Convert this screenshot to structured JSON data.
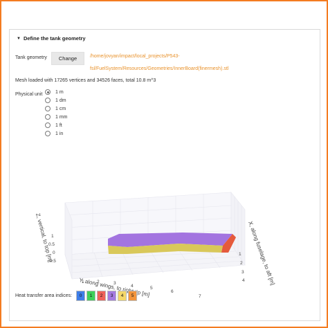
{
  "section": {
    "title": "Define the tank geometry"
  },
  "geometry": {
    "label": "Tank geometry",
    "button": "Change",
    "path_line1": "/home/jovyan/impact/local_projects/P543-",
    "path_line2": "fsl/FuelSystem/Resources/Geometries/InnerBoard(finermesh).stl"
  },
  "mesh_info": "Mesh loaded with 17265 vertices and 34526 faces, total 10.8 m^3",
  "physical_unit": {
    "label": "Physical unit",
    "selected": "1 m",
    "options": [
      "1 m",
      "1 dm",
      "1 cm",
      "1 mm",
      "1 ft",
      "1 in"
    ]
  },
  "plot": {
    "z_axis_label": "Z, vertical, to top [m]",
    "y_axis_label": "Y, along wings, to right tip [m]",
    "x_axis_label": "X, along fuselage, to aft [m]",
    "z_ticks": [
      "1",
      "0.5",
      "0",
      "−0.5"
    ],
    "y_ticks": [
      "1",
      "2",
      "3",
      "4",
      "5",
      "6",
      "7"
    ],
    "x_ticks": [
      "1",
      "2",
      "3",
      "4"
    ],
    "colors": {
      "top": "#a374e0",
      "side": "#d9c85a",
      "end": "#e55a3c"
    }
  },
  "heat_transfer": {
    "label": "Heat transfer area indices:",
    "indices": [
      {
        "value": "0",
        "color": "#3e7ee8"
      },
      {
        "value": "1",
        "color": "#3fcf5b"
      },
      {
        "value": "2",
        "color": "#f0625a"
      },
      {
        "value": "3",
        "color": "#a57ae0"
      },
      {
        "value": "4",
        "color": "#f5d86a"
      },
      {
        "value": "5",
        "color": "#f3953b"
      }
    ]
  }
}
